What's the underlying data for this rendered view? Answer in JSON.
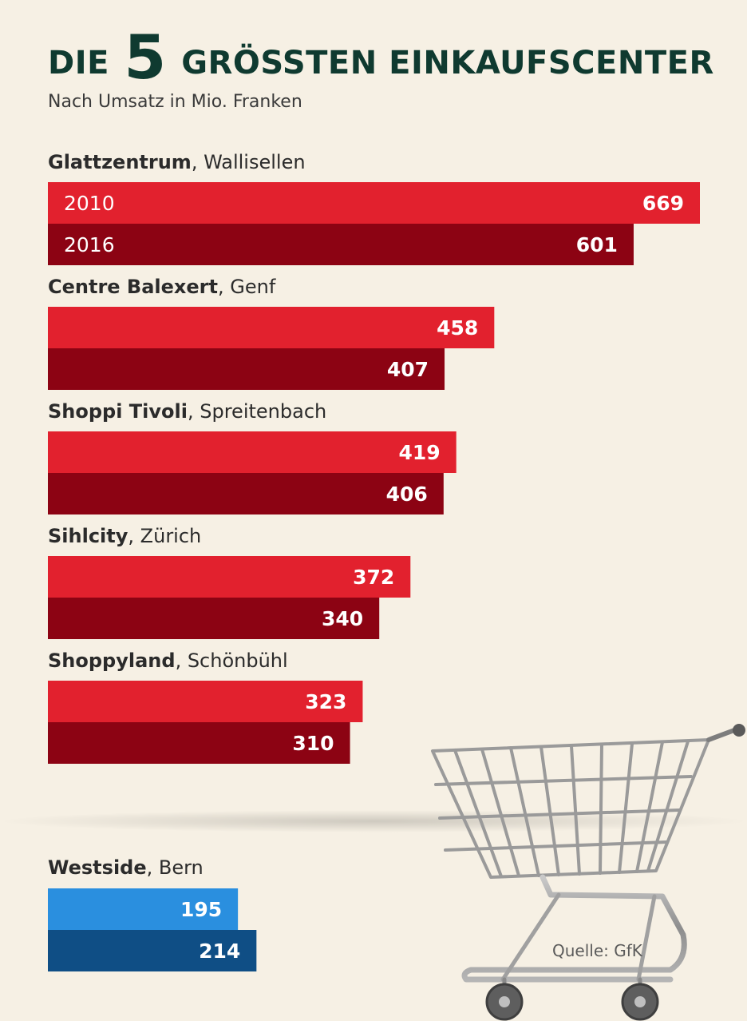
{
  "title_pre": "DIE",
  "title_num": "5",
  "title_post": "GRÖSSTEN EINKAUFSCENTER",
  "subtitle": "Nach Umsatz in Mio. Franken",
  "source": "Quelle: GfK",
  "colors": {
    "y2010": "#e2212e",
    "y2016": "#8c0313",
    "side2010": "#2a8fdf",
    "side2016": "#0f4e85",
    "background": "#f6f0e4"
  },
  "chart_data": {
    "type": "bar",
    "orientation": "horizontal",
    "years": [
      "2010",
      "2016"
    ],
    "unit": "Mio. Franken",
    "groups": [
      {
        "name": "Glattzentrum",
        "place": "Wallisellen",
        "values": [
          669,
          601
        ]
      },
      {
        "name": "Centre Balexert",
        "place": "Genf",
        "values": [
          458,
          407
        ]
      },
      {
        "name": "Shoppi Tivoli",
        "place": "Spreitenbach",
        "values": [
          419,
          406
        ]
      },
      {
        "name": "Sihlcity",
        "place": "Zürich",
        "values": [
          372,
          340
        ]
      },
      {
        "name": "Shoppyland",
        "place": "Schönbühl",
        "values": [
          323,
          310
        ]
      }
    ],
    "extra_group": {
      "name": "Westside",
      "place": "Bern",
      "values": [
        195,
        214
      ]
    }
  }
}
